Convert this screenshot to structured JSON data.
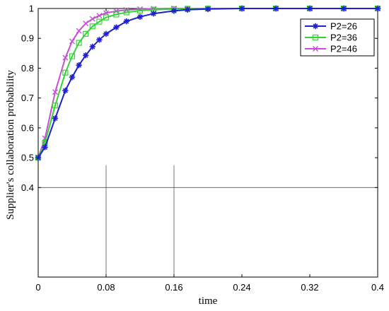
{
  "chart_data": {
    "type": "line",
    "title": "",
    "xlabel": "time",
    "ylabel": "Supplier's collaboration probability",
    "xlim": [
      0,
      0.4
    ],
    "ylim": [
      0.1,
      1.0
    ],
    "x_ticks": [
      0,
      0.08,
      0.16,
      0.24,
      0.32,
      0.4
    ],
    "x_tick_labels": [
      "0",
      "0.08",
      "0.16",
      "0.24",
      "0.32",
      "0.4"
    ],
    "y_ticks": [
      0.4,
      0.5,
      0.6,
      0.7,
      0.8,
      0.9,
      1.0
    ],
    "y_tick_labels": [
      "0.4",
      "0.5",
      "0.6",
      "0.7",
      "0.8",
      "0.9",
      "1"
    ],
    "grid": false,
    "legend_position": "top-right",
    "reference_lines": [
      {
        "orientation": "horizontal",
        "y": 0.4
      },
      {
        "orientation": "vertical",
        "x": 0.08,
        "y_top": 0.475
      },
      {
        "orientation": "vertical",
        "x": 0.16,
        "y_top": 0.475
      }
    ],
    "series": [
      {
        "name": "P2=26",
        "color": "#1f1fd0",
        "marker": "star",
        "x": [
          0,
          0.008,
          0.02,
          0.032,
          0.04,
          0.048,
          0.056,
          0.064,
          0.072,
          0.08,
          0.092,
          0.104,
          0.12,
          0.136,
          0.16,
          0.176,
          0.2,
          0.24,
          0.28,
          0.32,
          0.36,
          0.4
        ],
        "y": [
          0.5,
          0.535,
          0.632,
          0.725,
          0.77,
          0.81,
          0.843,
          0.872,
          0.895,
          0.915,
          0.937,
          0.957,
          0.972,
          0.983,
          0.992,
          0.996,
          0.998,
          1.0,
          1.0,
          1.0,
          1.0,
          1.0
        ]
      },
      {
        "name": "P2=36",
        "color": "#32d432",
        "marker": "square",
        "x": [
          0,
          0.008,
          0.02,
          0.032,
          0.04,
          0.048,
          0.056,
          0.064,
          0.072,
          0.08,
          0.092,
          0.104,
          0.12,
          0.136,
          0.16,
          0.176,
          0.2,
          0.24,
          0.28,
          0.32,
          0.36,
          0.4
        ],
        "y": [
          0.5,
          0.55,
          0.675,
          0.785,
          0.84,
          0.885,
          0.915,
          0.94,
          0.956,
          0.97,
          0.98,
          0.987,
          0.993,
          0.996,
          0.998,
          0.999,
          1.0,
          1.0,
          1.0,
          1.0,
          1.0,
          1.0
        ]
      },
      {
        "name": "P2=46",
        "color": "#c64fd6",
        "marker": "x",
        "x": [
          0,
          0.008,
          0.02,
          0.032,
          0.04,
          0.048,
          0.056,
          0.064,
          0.072,
          0.08,
          0.092,
          0.104,
          0.12,
          0.136,
          0.16,
          0.176,
          0.2,
          0.24,
          0.28,
          0.32,
          0.36,
          0.4
        ],
        "y": [
          0.5,
          0.565,
          0.72,
          0.835,
          0.89,
          0.925,
          0.95,
          0.965,
          0.976,
          0.985,
          0.991,
          0.995,
          0.998,
          0.999,
          1.0,
          1.0,
          1.0,
          1.0,
          1.0,
          1.0,
          1.0,
          1.0
        ]
      }
    ]
  }
}
